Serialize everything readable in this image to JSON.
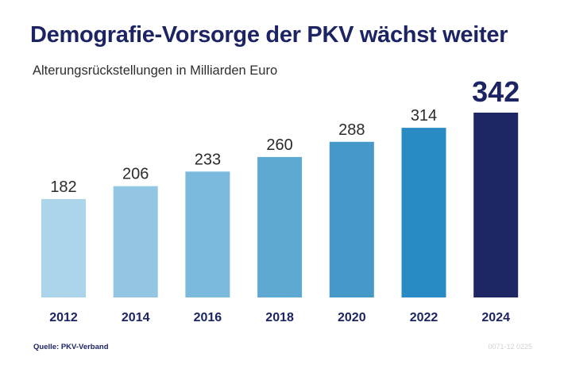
{
  "title": "Demografie-Vorsorge der PKV wächst weiter",
  "subtitle": "Alterungsrückstellungen in Milliarden Euro",
  "source": "Quelle: PKV-Verband",
  "doc_id": "0071-12 0225",
  "chart_data": {
    "type": "bar",
    "categories": [
      "2012",
      "2014",
      "2016",
      "2018",
      "2020",
      "2022",
      "2024"
    ],
    "values": [
      182,
      206,
      233,
      260,
      288,
      314,
      342
    ],
    "value_labels": [
      "182",
      "206",
      "233",
      "260",
      "288",
      "314",
      "342"
    ],
    "title": "Demografie-Vorsorge der PKV wächst weiter",
    "subtitle": "Alterungsrückstellungen in Milliarden Euro",
    "xlabel": "",
    "ylabel": "",
    "ylim": [
      0,
      342
    ],
    "grid": false,
    "legend": "none",
    "bar_colors": [
      "#acd4ea",
      "#92c6e3",
      "#7cbadd",
      "#5ea9d2",
      "#4499c8",
      "#2a8bc4",
      "#1e2663"
    ],
    "highlight_index": 6,
    "label_color": "#2b2b2b",
    "highlight_label_color": "#1c2463",
    "category_color": "#1c2463"
  }
}
